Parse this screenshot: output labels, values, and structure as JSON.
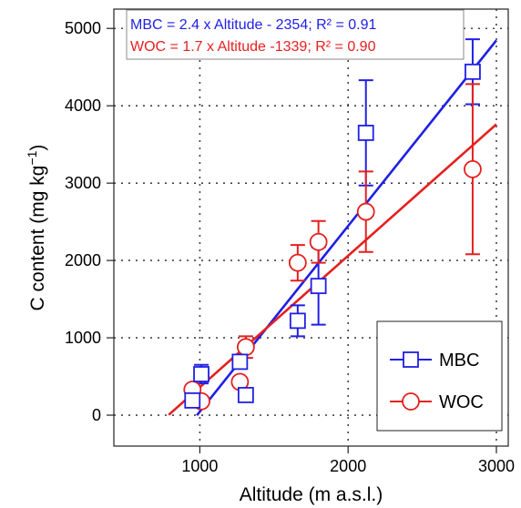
{
  "chart_data": {
    "type": "scatter",
    "title": "",
    "xlabel": "Altitude (m a.s.l.)",
    "ylabel_main": "C content (mg kg",
    "ylabel_exp": "−1",
    "ylabel_close": ")",
    "xlim": [
      420,
      3080
    ],
    "ylim": [
      -400,
      5250
    ],
    "x_ticks": [
      1000,
      2000,
      3000
    ],
    "y_ticks": [
      0,
      1000,
      2000,
      3000,
      4000,
      5000
    ],
    "grid": true,
    "legend_position": "bottom-right",
    "series": [
      {
        "name": "MBC",
        "color": "#1f1fe6",
        "marker": "square",
        "points": [
          {
            "x": 950,
            "y": 190,
            "err": 80
          },
          {
            "x": 1010,
            "y": 530,
            "err": 120
          },
          {
            "x": 1270,
            "y": 690,
            "err": 80
          },
          {
            "x": 1310,
            "y": 260,
            "err": 80
          },
          {
            "x": 1660,
            "y": 1220,
            "err": 200
          },
          {
            "x": 1800,
            "y": 1670,
            "err": 500
          },
          {
            "x": 2120,
            "y": 3650,
            "err": 680
          },
          {
            "x": 2840,
            "y": 4440,
            "err": 420
          }
        ],
        "fit": {
          "slope": 2.4,
          "intercept": -2354,
          "x_range": [
            980,
            3000
          ]
        }
      },
      {
        "name": "WOC",
        "color": "#e61f1f",
        "marker": "circle",
        "points": [
          {
            "x": 950,
            "y": 330,
            "err": 60
          },
          {
            "x": 1010,
            "y": 180,
            "err": 50
          },
          {
            "x": 1270,
            "y": 430,
            "err": 60
          },
          {
            "x": 1310,
            "y": 880,
            "err": 140
          },
          {
            "x": 1660,
            "y": 1970,
            "err": 230
          },
          {
            "x": 1800,
            "y": 2240,
            "err": 270
          },
          {
            "x": 2120,
            "y": 2630,
            "err": 520
          },
          {
            "x": 2840,
            "y": 3180,
            "err": 1100
          }
        ],
        "fit": {
          "slope": 1.7,
          "intercept": -1339,
          "x_range": [
            790,
            3000
          ]
        }
      }
    ],
    "equations": [
      {
        "text": "MBC = 2.4 x Altitude - 2354; R² = 0.91",
        "color": "#1f1fe6"
      },
      {
        "text": "WOC = 1.7 x Altitude -1339; R² = 0.90",
        "color": "#e61f1f"
      }
    ]
  }
}
